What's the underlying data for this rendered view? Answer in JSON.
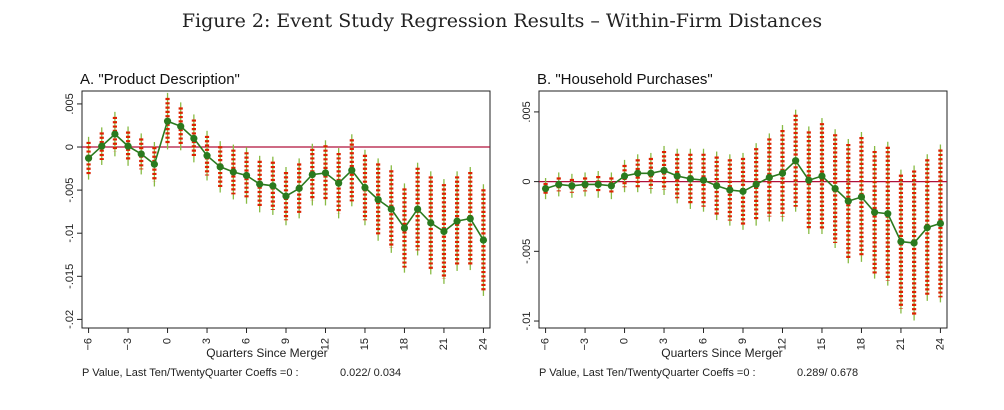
{
  "figure_title": "Figure 2: Event Study Regression Results – Within-Firm Distances",
  "colors": {
    "dots": "#dd2200",
    "ci_line": "#88bb44",
    "point": "#2a7a1e",
    "zero_line": "#b0103a",
    "frame": "#222222"
  },
  "chart_data": [
    {
      "type": "line",
      "title": "A. \"Product Description\"",
      "xlabel": "Quarters Since Merger",
      "ylabel": "",
      "footer": "P Value, Last Ten/TwentyQuarter Coeffs =0 :",
      "pvalues": "0.022/   0.034",
      "x": [
        -6,
        -5,
        -4,
        -3,
        -2,
        -1,
        0,
        1,
        2,
        3,
        4,
        5,
        6,
        7,
        8,
        9,
        10,
        11,
        12,
        13,
        14,
        15,
        16,
        17,
        18,
        19,
        20,
        21,
        22,
        23,
        24
      ],
      "y": [
        -0.0013,
        0.0001,
        0.0015,
        0.0001,
        -0.0008,
        -0.002,
        0.003,
        0.0024,
        0.001,
        -0.001,
        -0.0023,
        -0.0029,
        -0.0033,
        -0.0043,
        -0.0045,
        -0.0057,
        -0.0048,
        -0.0032,
        -0.003,
        -0.0042,
        -0.0027,
        -0.0047,
        -0.0061,
        -0.0072,
        -0.0094,
        -0.0072,
        -0.0088,
        -0.0098,
        -0.0086,
        -0.0083,
        -0.0108
      ],
      "lo": [
        -0.0032,
        -0.0015,
        -0.0005,
        -0.0016,
        -0.0026,
        -0.004,
        0.0003,
        0.0002,
        -0.0012,
        -0.0033,
        -0.0047,
        -0.0055,
        -0.006,
        -0.007,
        -0.0073,
        -0.0085,
        -0.0077,
        -0.0062,
        -0.0062,
        -0.0077,
        -0.0063,
        -0.0085,
        -0.0103,
        -0.0117,
        -0.014,
        -0.012,
        -0.0142,
        -0.0153,
        -0.0138,
        -0.0137,
        -0.0167
      ],
      "hi": [
        0.0006,
        0.0017,
        0.0035,
        0.0018,
        0.001,
        0.0,
        0.0057,
        0.0046,
        0.0032,
        0.0013,
        0.0001,
        -0.0003,
        -0.0006,
        -0.0016,
        -0.0017,
        -0.0029,
        -0.0019,
        -0.0002,
        0.0002,
        -0.0007,
        0.0009,
        -0.0009,
        -0.0019,
        -0.0027,
        -0.0048,
        -0.0024,
        -0.0034,
        -0.0043,
        -0.0034,
        -0.0029,
        -0.0049
      ],
      "xlim": [
        -6.5,
        24.5
      ],
      "ylim": [
        -0.021,
        0.0065
      ],
      "xticks": [
        -6,
        -3,
        0,
        3,
        6,
        9,
        12,
        15,
        18,
        21,
        24
      ],
      "yticks": [
        0.005,
        0,
        -0.005,
        -0.01,
        -0.015,
        -0.02
      ],
      "ytick_labels": [
        ".005",
        "0",
        "-.005",
        "-.01",
        "-.015",
        "-.02"
      ]
    },
    {
      "type": "line",
      "title": "B. \"Household Purchases\"",
      "xlabel": "Quarters Since Merger",
      "ylabel": "",
      "footer": "P Value, Last Ten/TwentyQuarter Coeffs =0 :",
      "pvalues": "0.289/   0.678",
      "x": [
        -6,
        -5,
        -4,
        -3,
        -2,
        -1,
        0,
        1,
        2,
        3,
        4,
        5,
        6,
        7,
        8,
        9,
        10,
        11,
        12,
        13,
        14,
        15,
        16,
        17,
        18,
        19,
        20,
        21,
        22,
        23,
        24
      ],
      "y": [
        -0.0005,
        -0.0002,
        -0.0003,
        -0.0002,
        -0.0002,
        -0.0003,
        0.0004,
        0.0006,
        0.0006,
        0.0008,
        0.0004,
        0.0002,
        0.0001,
        -0.0003,
        -0.0006,
        -0.0007,
        -0.0002,
        0.0003,
        0.0006,
        0.0015,
        0.0001,
        0.0004,
        -0.0005,
        -0.0014,
        -0.0011,
        -0.0022,
        -0.0023,
        -0.0043,
        -0.0044,
        -0.0033,
        -0.003
      ],
      "lo": [
        -0.0009,
        -0.0007,
        -0.0008,
        -0.0007,
        -0.0008,
        -0.0009,
        -0.0004,
        -0.0004,
        -0.0005,
        -0.0006,
        -0.0012,
        -0.0016,
        -0.0018,
        -0.0024,
        -0.0028,
        -0.0031,
        -0.0028,
        -0.0025,
        -0.0025,
        -0.0018,
        -0.0034,
        -0.0034,
        -0.0044,
        -0.0055,
        -0.0054,
        -0.0066,
        -0.0071,
        -0.0091,
        -0.0096,
        -0.0082,
        -0.0083
      ],
      "hi": [
        -0.0001,
        0.0003,
        0.0002,
        0.0003,
        0.0004,
        0.0003,
        0.0012,
        0.0016,
        0.0017,
        0.0022,
        0.002,
        0.002,
        0.002,
        0.0018,
        0.0016,
        0.0017,
        0.0024,
        0.0031,
        0.0037,
        0.0048,
        0.0036,
        0.0042,
        0.0034,
        0.0027,
        0.0032,
        0.0022,
        0.0025,
        0.0005,
        0.0008,
        0.0016,
        0.0023
      ],
      "xlim": [
        -6.5,
        24.5
      ],
      "ylim": [
        -0.0105,
        0.0065
      ],
      "xticks": [
        -6,
        -3,
        0,
        3,
        6,
        9,
        12,
        15,
        18,
        21,
        24
      ],
      "yticks": [
        0.005,
        0,
        -0.005,
        -0.01
      ],
      "ytick_labels": [
        ".005",
        "0",
        "-.005",
        "-.01"
      ]
    }
  ]
}
